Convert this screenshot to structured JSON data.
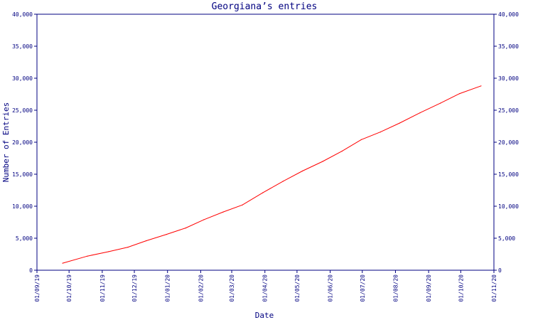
{
  "chart_data": {
    "type": "line",
    "title": "Georgiana’s entries",
    "xlabel": "Date",
    "ylabel": "Number of Entries",
    "ylim": [
      0,
      40000
    ],
    "y_ticks": [
      0,
      5000,
      10000,
      15000,
      20000,
      25000,
      30000,
      35000,
      40000
    ],
    "y_tick_labels": [
      "0",
      "5,000",
      "10,000",
      "15,000",
      "20,000",
      "25,000",
      "30,000",
      "35,000",
      "40,000"
    ],
    "x_tick_labels": [
      "01/09/19",
      "01/10/19",
      "01/11/19",
      "01/12/19",
      "01/01/20",
      "01/02/20",
      "01/03/20",
      "01/04/20",
      "01/05/20",
      "01/06/20",
      "01/07/20",
      "01/08/20",
      "01/09/20",
      "01/10/20",
      "01/11/20"
    ],
    "grid": false,
    "right_axis": true,
    "colors": {
      "axis": "#000080",
      "line": "#ff0000"
    },
    "series": [
      {
        "x": [
          "2019-09-25",
          "2019-10-18",
          "2019-11-07",
          "2019-11-25",
          "2019-12-12",
          "2019-12-31",
          "2020-01-18",
          "2020-02-04",
          "2020-02-22",
          "2020-03-11",
          "2020-03-30",
          "2020-04-18",
          "2020-05-06",
          "2020-05-25",
          "2020-06-12",
          "2020-06-30",
          "2020-07-18",
          "2020-08-05",
          "2020-08-24",
          "2020-09-12",
          "2020-09-30",
          "2020-10-20"
        ],
        "values": [
          1100,
          2200,
          2900,
          3600,
          4600,
          5600,
          6600,
          7900,
          9100,
          10200,
          12100,
          13900,
          15500,
          17000,
          18600,
          20400,
          21600,
          23000,
          24600,
          26100,
          27600,
          28800
        ]
      }
    ]
  }
}
